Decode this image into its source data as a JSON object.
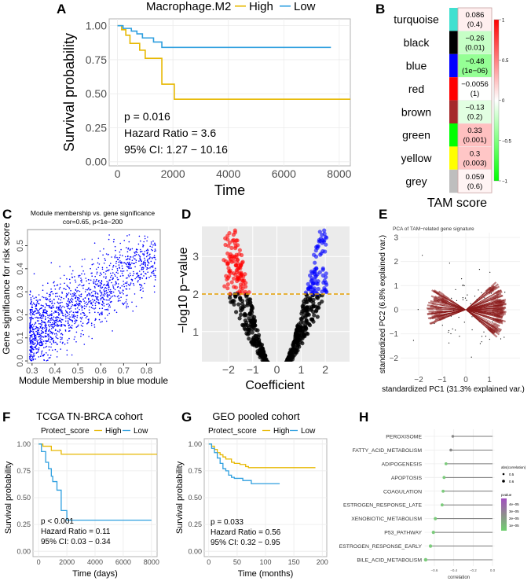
{
  "chart_data": [
    {
      "panel": "A",
      "type": "line",
      "legend_title": "Macrophage.M2",
      "series": [
        {
          "name": "High",
          "color": "#E7B800",
          "steps": [
            [
              0,
              1
            ],
            [
              150,
              0.97
            ],
            [
              300,
              0.93
            ],
            [
              450,
              0.87
            ],
            [
              800,
              0.82
            ],
            [
              1000,
              0.76
            ],
            [
              1600,
              0.57
            ],
            [
              2050,
              0.46
            ],
            [
              8400,
              0.46
            ]
          ]
        },
        {
          "name": "Low",
          "color": "#2E9FDF",
          "steps": [
            [
              0,
              1
            ],
            [
              200,
              0.98
            ],
            [
              500,
              0.96
            ],
            [
              700,
              0.94
            ],
            [
              900,
              0.91
            ],
            [
              1300,
              0.88
            ],
            [
              1600,
              0.84
            ],
            [
              7700,
              0.84
            ]
          ]
        }
      ],
      "xlabel": "Time",
      "ylabel": "Survival probability",
      "xticks": [
        "0",
        "2000",
        "4000",
        "6000",
        "8000"
      ],
      "xlim": [
        -300,
        8400
      ],
      "yticks": [
        "0.00",
        "0.25",
        "0.50",
        "0.75",
        "1.00"
      ],
      "ylim": [
        -0.03,
        1.05
      ],
      "annotations": [
        "p = 0.016",
        "Hazard Ratio = 3.6",
        "95% CI: 1.27 − 10.16"
      ],
      "legend": "top"
    },
    {
      "panel": "B",
      "type": "heatmap",
      "xlabel": "TAM score",
      "rows": [
        {
          "module": "turquoise",
          "color": "#40E0D0",
          "value": 0.086,
          "label": "0.086",
          "p": "(0.4)"
        },
        {
          "module": "black",
          "color": "#000000",
          "value": -0.26,
          "label": "−0.26",
          "p": "(0.01)"
        },
        {
          "module": "blue",
          "color": "#0000FF",
          "value": -0.48,
          "label": "−0.48",
          "p": "(1e−06)"
        },
        {
          "module": "red",
          "color": "#FF0000",
          "value": -0.0056,
          "label": "−0.0056",
          "p": "(1)"
        },
        {
          "module": "brown",
          "color": "#A52A2A",
          "value": -0.13,
          "label": "−0.13",
          "p": "(0.2)"
        },
        {
          "module": "green",
          "color": "#00FF00",
          "value": 0.33,
          "label": "0.33",
          "p": "(0.001)"
        },
        {
          "module": "yellow",
          "color": "#FFFF00",
          "value": 0.3,
          "label": "0.3",
          "p": "(0.003)"
        },
        {
          "module": "grey",
          "color": "#BEBEBE",
          "value": 0.059,
          "label": "0.059",
          "p": "(0.6)"
        }
      ],
      "colorbar_ticks": [
        "1",
        "0.5",
        "0",
        "−0.5",
        "−1"
      ]
    },
    {
      "panel": "C",
      "type": "scatter",
      "title": "Module membership vs. gene significance",
      "subtitle": "cor=0.65, p<1e−200",
      "correlation": 0.65,
      "n_points": 1500,
      "color": "#0000FF",
      "xlabel": "Module Membership in blue module",
      "ylabel": "Gene significance for risk score",
      "xticks": [
        "0.3",
        "0.4",
        "0.5",
        "0.6",
        "0.7",
        "0.8"
      ],
      "xlim": [
        0.28,
        0.86
      ],
      "yticks": [
        "0.0",
        "0.1",
        "0.2",
        "0.3",
        "0.4",
        "0.5"
      ],
      "ylim": [
        -0.01,
        0.57
      ]
    },
    {
      "panel": "D",
      "type": "scatter",
      "xlabel": "Coefficient",
      "ylabel": "−log10 p−value",
      "xticks": [
        "−2",
        "−1",
        "0",
        "1",
        "2"
      ],
      "xlim": [
        -3.1,
        3.0
      ],
      "yticks": [
        "1",
        "2",
        "3"
      ],
      "ylim": [
        0.2,
        3.8
      ],
      "threshold": 2,
      "threshold_color": "#E69F00",
      "colors": {
        "down": "#FF0000",
        "up": "#0000FF",
        "ns": "#000000"
      }
    },
    {
      "panel": "E",
      "type": "scatter",
      "title": "PCA of TAM−related gene signature",
      "xlabel": "standardized PC1 (31.3% explained var.)",
      "ylabel": "standardized PC2 (6.8% explained var.)",
      "xticks": [
        "−2",
        "−1",
        "0",
        "1"
      ],
      "xlim": [
        -2.7,
        1.8
      ],
      "yticks": [
        "−2",
        "−1",
        "0",
        "1",
        "2",
        "3"
      ],
      "ylim": [
        -2.8,
        3.3
      ],
      "arrow_color": "#8B1A1A"
    },
    {
      "panel": "F",
      "type": "line",
      "title": "TCGA TN-BRCA cohort",
      "legend_title": "Protect_score",
      "series": [
        {
          "name": "High",
          "color": "#E7B800",
          "steps": [
            [
              0,
              1
            ],
            [
              300,
              0.98
            ],
            [
              900,
              0.94
            ],
            [
              1600,
              0.905
            ],
            [
              8400,
              0.905
            ]
          ]
        },
        {
          "name": "Low",
          "color": "#2E9FDF",
          "steps": [
            [
              0,
              1
            ],
            [
              200,
              0.93
            ],
            [
              500,
              0.83
            ],
            [
              700,
              0.77
            ],
            [
              900,
              0.7
            ],
            [
              1000,
              0.65
            ],
            [
              1300,
              0.57
            ],
            [
              1600,
              0.38
            ],
            [
              2000,
              0.29
            ],
            [
              8000,
              0.29
            ]
          ]
        }
      ],
      "xlabel": "Time (days)",
      "ylabel": "Survival probability",
      "xticks": [
        "0",
        "2000",
        "4000",
        "6000",
        "8000"
      ],
      "xlim": [
        -400,
        8400
      ],
      "yticks": [
        "0.00",
        "0.25",
        "0.50",
        "0.75",
        "1.00"
      ],
      "ylim": [
        -0.05,
        1.05
      ],
      "annotations": [
        "p < 0.001",
        "Hazard Ratio = 0.11",
        "95% CI: 0.03 − 0.34"
      ],
      "legend": "top"
    },
    {
      "panel": "G",
      "type": "line",
      "title": "GEO pooled cohort",
      "legend_title": "Protect_score",
      "series": [
        {
          "name": "High",
          "color": "#E7B800",
          "steps": [
            [
              0,
              1
            ],
            [
              5,
              0.98
            ],
            [
              10,
              0.95
            ],
            [
              15,
              0.92
            ],
            [
              20,
              0.9
            ],
            [
              25,
              0.88
            ],
            [
              30,
              0.86
            ],
            [
              40,
              0.83
            ],
            [
              45,
              0.82
            ],
            [
              55,
              0.81
            ],
            [
              65,
              0.79
            ],
            [
              70,
              0.78
            ],
            [
              188,
              0.78
            ]
          ]
        },
        {
          "name": "Low",
          "color": "#2E9FDF",
          "steps": [
            [
              0,
              1
            ],
            [
              5,
              0.96
            ],
            [
              10,
              0.92
            ],
            [
              15,
              0.87
            ],
            [
              20,
              0.82
            ],
            [
              25,
              0.77
            ],
            [
              30,
              0.75
            ],
            [
              35,
              0.71
            ],
            [
              40,
              0.69
            ],
            [
              45,
              0.68
            ],
            [
              60,
              0.66
            ],
            [
              75,
              0.63
            ],
            [
              125,
              0.63
            ]
          ]
        }
      ],
      "xlabel": "Time (months)",
      "ylabel": "Survival probability",
      "xticks": [
        "0",
        "50",
        "100",
        "150",
        "200"
      ],
      "xlim": [
        -8,
        208
      ],
      "yticks": [
        "0.00",
        "0.25",
        "0.50",
        "0.75",
        "1.00"
      ],
      "ylim": [
        -0.05,
        1.05
      ],
      "annotations": [
        "p = 0.033",
        "Hazard Ratio = 0.56",
        "95% CI: 0.32 − 0.95"
      ],
      "legend": "top"
    },
    {
      "panel": "H",
      "type": "scatter",
      "categories": [
        "PEROXISOME",
        "FATTY_ACID_METABOLISM",
        "ADIPOGENESIS",
        "APOPTOSIS",
        "COAGULATION",
        "ESTROGEN_RESPONSE_LATE",
        "XENOBIOTIC_METABOLISM",
        "P53_PATHWAY",
        "ESTROGEN_RESPONSE_EARLY",
        "BILE_ACID_METABOLISM"
      ],
      "values": [
        -0.41,
        -0.43,
        -0.48,
        -0.5,
        -0.51,
        -0.52,
        -0.59,
        -0.61,
        -0.64,
        -0.69
      ],
      "xlabel": "correlation",
      "xticks": [
        "−0.6",
        "−0.4",
        "−0.2",
        "0.0"
      ],
      "xlim": [
        -0.7,
        0.02
      ],
      "size_legend_title": "abs(correlation)",
      "size_legend": [
        "0.5",
        "0.6"
      ],
      "color_legend_title": "pvalue",
      "color_legend": [
        "4e−05",
        "3e−05",
        "2e−05",
        "1e−05"
      ],
      "legend": "right"
    }
  ]
}
